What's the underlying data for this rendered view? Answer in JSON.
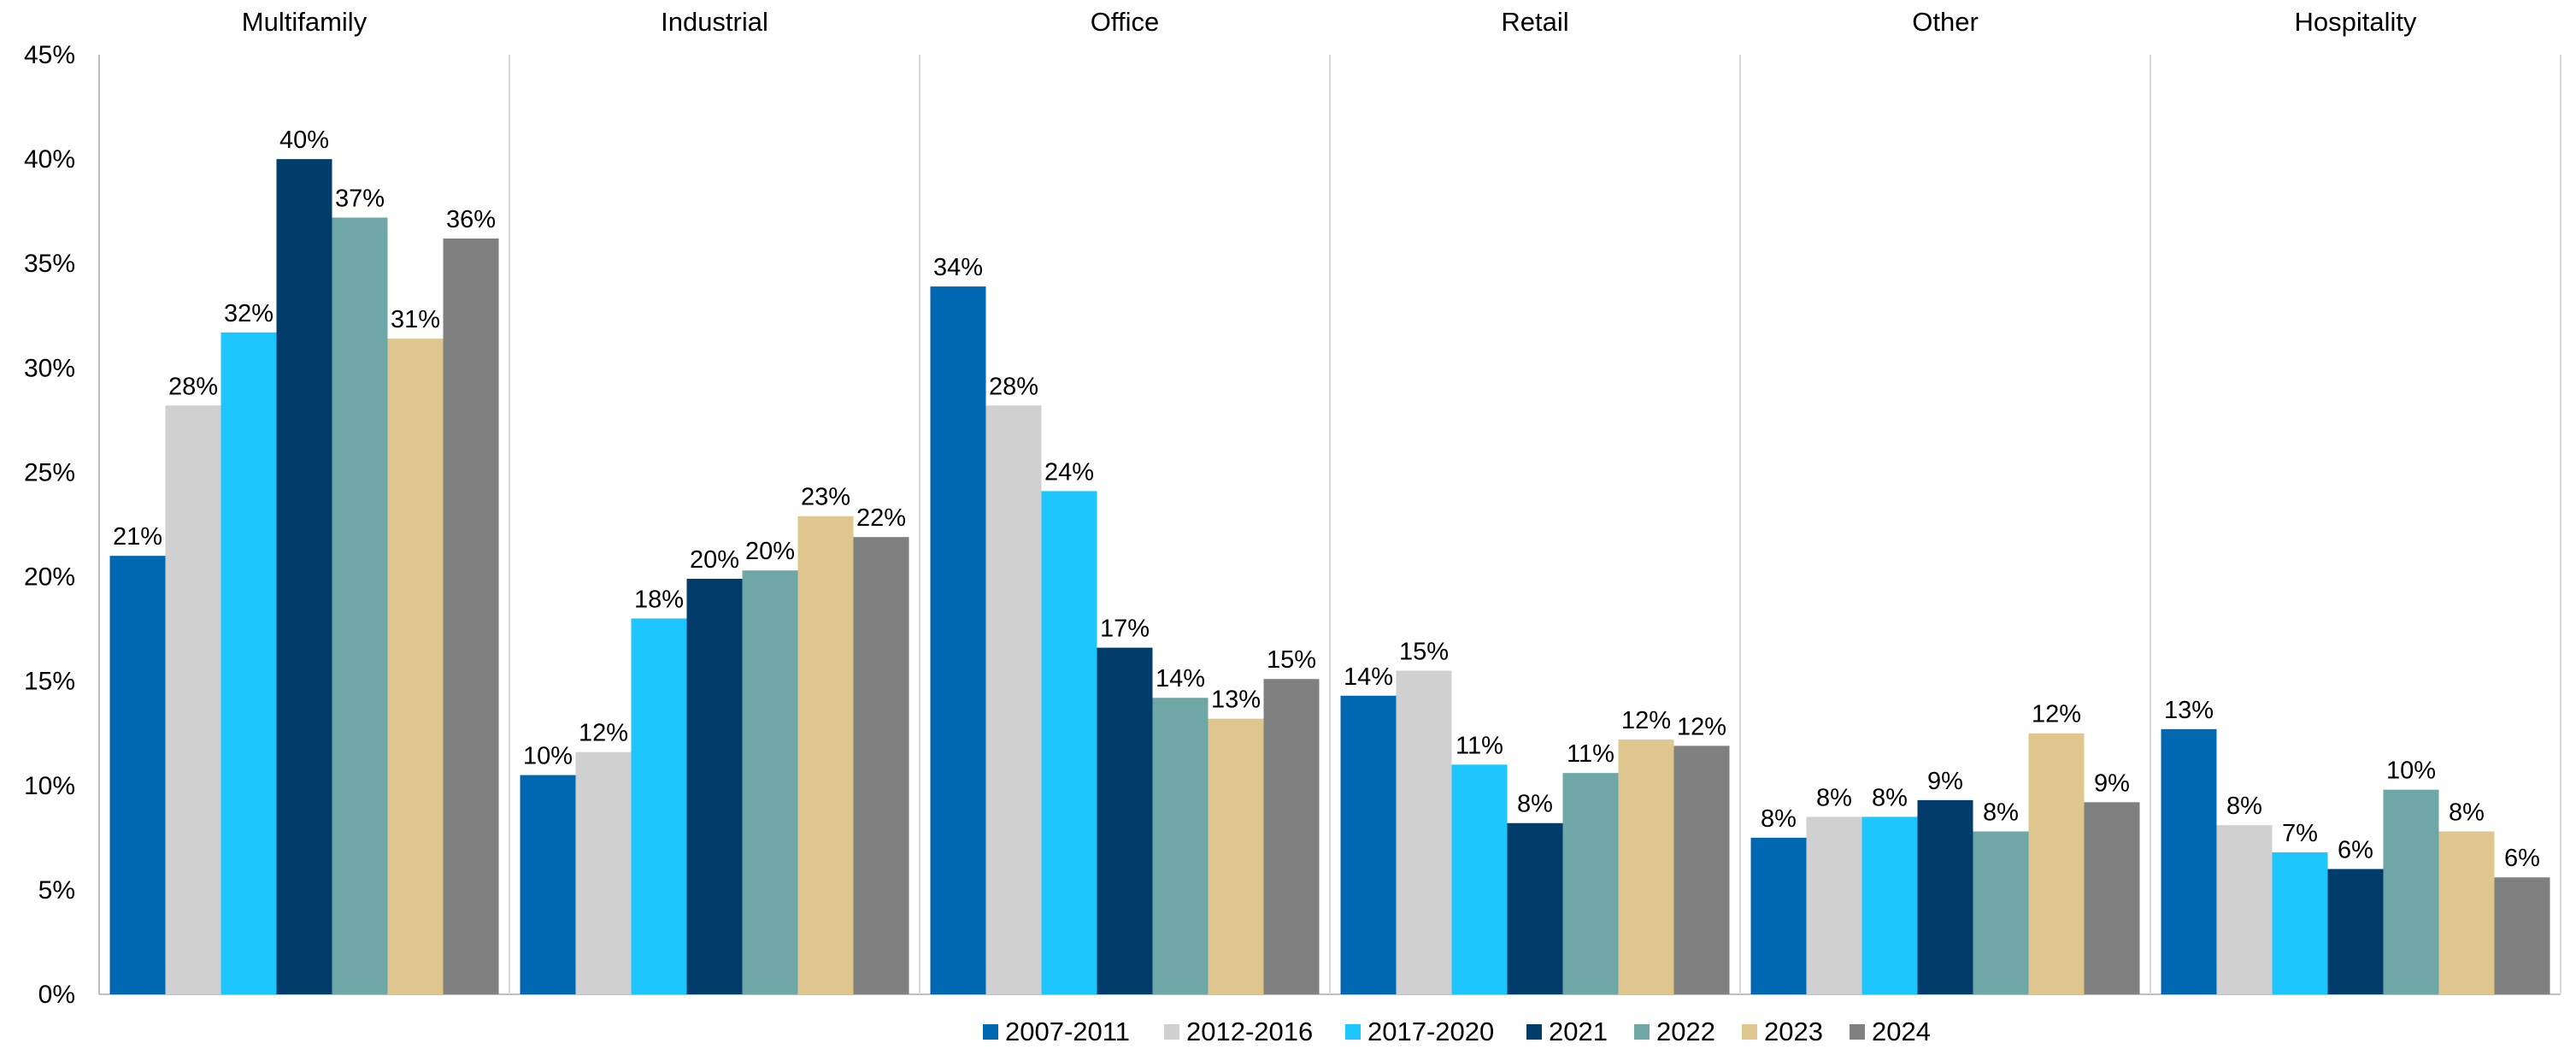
{
  "chart_data": {
    "type": "bar",
    "title": "",
    "xlabel": "",
    "ylabel": "",
    "ylim": [
      0,
      45
    ],
    "y_ticks": [
      "0%",
      "5%",
      "10%",
      "15%",
      "20%",
      "25%",
      "30%",
      "35%",
      "40%",
      "45%"
    ],
    "grid": false,
    "legend_position": "bottom",
    "panels": [
      "Multifamily",
      "Industrial",
      "Office",
      "Retail",
      "Other",
      "Hospitality"
    ],
    "series": [
      {
        "name": "2007-2011",
        "color": "#0067b1",
        "values": [
          21.0,
          10.5,
          33.9,
          14.3,
          7.5,
          12.7
        ],
        "labels": [
          "21%",
          "10%",
          "34%",
          "14%",
          "8%",
          "13%"
        ]
      },
      {
        "name": "2012-2016",
        "color": "#d0d0d0",
        "values": [
          28.2,
          11.6,
          28.2,
          15.5,
          8.5,
          8.1
        ],
        "labels": [
          "28%",
          "12%",
          "28%",
          "15%",
          "8%",
          "8%"
        ]
      },
      {
        "name": "2017-2020",
        "color": "#1ec6ff",
        "values": [
          31.7,
          18.0,
          24.1,
          11.0,
          8.5,
          6.8
        ],
        "labels": [
          "32%",
          "18%",
          "24%",
          "11%",
          "8%",
          "7%"
        ]
      },
      {
        "name": "2021",
        "color": "#003d6a",
        "values": [
          40.0,
          19.9,
          16.6,
          8.2,
          9.3,
          6.0
        ],
        "labels": [
          "40%",
          "20%",
          "17%",
          "8%",
          "9%",
          "6%"
        ]
      },
      {
        "name": "2022",
        "color": "#6fa6a6",
        "values": [
          37.2,
          20.3,
          14.2,
          10.6,
          7.8,
          9.8
        ],
        "labels": [
          "37%",
          "20%",
          "14%",
          "11%",
          "8%",
          "10%"
        ]
      },
      {
        "name": "2023",
        "color": "#dfc68f",
        "values": [
          31.4,
          22.9,
          13.2,
          12.2,
          12.5,
          7.8
        ],
        "labels": [
          "31%",
          "23%",
          "13%",
          "12%",
          "12%",
          "8%"
        ]
      },
      {
        "name": "2024",
        "color": "#808080",
        "values": [
          36.2,
          21.9,
          15.1,
          11.9,
          9.2,
          5.6
        ],
        "labels": [
          "36%",
          "22%",
          "15%",
          "12%",
          "9%",
          "6%"
        ]
      }
    ]
  }
}
